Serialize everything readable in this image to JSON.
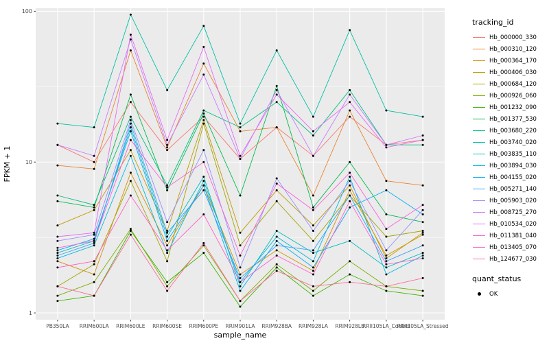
{
  "figure": {
    "background": "#FFFFFF",
    "panel_background": "#EBEBEB",
    "grid_color": "#FFFFFF",
    "axis_text_color": "#4D4D4D",
    "tick_color": "#333333",
    "point_color": "#000000"
  },
  "chart_data": {
    "type": "line",
    "title": "",
    "xlabel": "sample_name",
    "ylabel": "FPKM + 1",
    "y_scale": "log10",
    "ylim": [
      1,
      100
    ],
    "y_ticks": [
      "1",
      "10",
      "100"
    ],
    "y_tick_values": [
      1,
      10,
      100
    ],
    "y_minor_values": [
      3.1623,
      31.623
    ],
    "grid": true,
    "legend_position": "right",
    "series_legend_title": "tracking_id",
    "quant_legend": {
      "title": "quant_status",
      "items": [
        {
          "label": "OK",
          "color": "#000000"
        }
      ]
    },
    "categories": [
      "PB350LA",
      "RRIM600LA",
      "RRIM600LE",
      "RRIM600SE",
      "RRIM600PE",
      "RRIM901LA",
      "RRIM928BA",
      "RRIM928LA",
      "RRIM928LE",
      "RRII105LA_Control",
      "RRII105LA_Stressed"
    ],
    "series": [
      {
        "name": "Hb_000000_330",
        "color": "#F8766D",
        "values": [
          13,
          10,
          25,
          12,
          20,
          10.5,
          17,
          11,
          20,
          13,
          14
        ]
      },
      {
        "name": "Hb_000310_120",
        "color": "#EA8331",
        "values": [
          9.5,
          9,
          55,
          12.5,
          45,
          16,
          17,
          6,
          22,
          7.5,
          7
        ]
      },
      {
        "name": "Hb_000364_170",
        "color": "#D89000",
        "values": [
          2.2,
          1.8,
          8.5,
          2.8,
          7,
          1.8,
          2.6,
          1.9,
          6.5,
          2.4,
          3.3
        ]
      },
      {
        "name": "Hb_000406_030",
        "color": "#C09B00",
        "values": [
          3.8,
          4.8,
          12,
          3.5,
          19,
          3.4,
          6.5,
          3.8,
          7,
          2.3,
          3.4
        ]
      },
      {
        "name": "Hb_000684_120",
        "color": "#A3A500",
        "values": [
          1.5,
          2.1,
          7.5,
          2.2,
          18,
          2.8,
          5.5,
          3.0,
          6,
          3.2,
          3.5
        ]
      },
      {
        "name": "Hb_000926_060",
        "color": "#7CAE00",
        "values": [
          1.3,
          1.6,
          3.6,
          1.5,
          2.8,
          1.2,
          2.1,
          1.4,
          2.2,
          1.5,
          1.4
        ]
      },
      {
        "name": "Hb_001232_090",
        "color": "#39B600",
        "values": [
          1.2,
          1.3,
          3.5,
          1.6,
          2.5,
          1.1,
          2.0,
          1.3,
          1.8,
          1.4,
          1.3
        ]
      },
      {
        "name": "Hb_001377_530",
        "color": "#00BB4E",
        "values": [
          5.5,
          5.0,
          28,
          6.5,
          21,
          6.0,
          32,
          5.0,
          10,
          4.5,
          4.0
        ]
      },
      {
        "name": "Hb_003680_220",
        "color": "#00BF7D",
        "values": [
          6,
          5.2,
          20,
          7,
          22,
          17,
          25,
          15,
          30,
          13,
          13
        ]
      },
      {
        "name": "Hb_003740_020",
        "color": "#00C1A3",
        "values": [
          18,
          17,
          95,
          30,
          80,
          18,
          55,
          20,
          75,
          22,
          20
        ]
      },
      {
        "name": "Hb_003835_110",
        "color": "#00BFC4",
        "values": [
          2.5,
          3.0,
          17,
          3.2,
          8,
          1.5,
          3.5,
          2.5,
          3.0,
          2.0,
          2.5
        ]
      },
      {
        "name": "Hb_003894_030",
        "color": "#00BAE0",
        "values": [
          2.3,
          2.8,
          11,
          2.5,
          7.5,
          1.6,
          3.2,
          2.2,
          8,
          1.8,
          2.4
        ]
      },
      {
        "name": "Hb_004155_020",
        "color": "#00B0F6",
        "values": [
          2.6,
          3.1,
          16,
          3.0,
          7,
          1.4,
          3.0,
          2.0,
          5,
          6.5,
          4.5
        ]
      },
      {
        "name": "Hb_005271_140",
        "color": "#35A2FF",
        "values": [
          2.4,
          2.9,
          18,
          3.4,
          6.5,
          1.7,
          2.8,
          2.6,
          6,
          2.2,
          2.8
        ]
      },
      {
        "name": "Hb_005903_020",
        "color": "#9590FF",
        "values": [
          3.0,
          3.3,
          19,
          4.0,
          12,
          2.0,
          7.8,
          3.5,
          7.5,
          2.6,
          4.8
        ]
      },
      {
        "name": "Hb_008725_270",
        "color": "#C77CFF",
        "values": [
          13,
          11,
          65,
          13,
          38,
          10.5,
          30,
          11,
          28,
          13,
          15
        ]
      },
      {
        "name": "Hb_010534_020",
        "color": "#E76BF3",
        "values": [
          3.2,
          3.4,
          70,
          14,
          58,
          11,
          28,
          16,
          25,
          12.5,
          14
        ]
      },
      {
        "name": "Hb_011381_040",
        "color": "#FA62DB",
        "values": [
          2.7,
          3.0,
          14,
          6.8,
          10,
          2.4,
          7.2,
          4.8,
          8.5,
          3.6,
          5.2
        ]
      },
      {
        "name": "Hb_013405_070",
        "color": "#FF61CC",
        "values": [
          2.0,
          2.2,
          6,
          2.6,
          4.5,
          1.6,
          2.4,
          1.8,
          5.5,
          2.1,
          2.3
        ]
      },
      {
        "name": "Hb_124677_030",
        "color": "#FF6A98",
        "values": [
          1.5,
          1.3,
          3.3,
          1.4,
          2.9,
          1.2,
          1.9,
          1.5,
          1.6,
          1.5,
          1.7
        ]
      }
    ]
  }
}
